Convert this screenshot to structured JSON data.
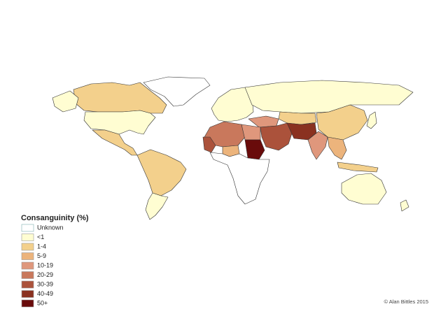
{
  "legend": {
    "title": "Consanguinity (%)",
    "items": [
      {
        "label": "Unknown",
        "color": "#ffffff"
      },
      {
        "label": "<1",
        "color": "#fffdd2"
      },
      {
        "label": "1-4",
        "color": "#f3d08c"
      },
      {
        "label": "5-9",
        "color": "#ecb47c"
      },
      {
        "label": "10-19",
        "color": "#df977c"
      },
      {
        "label": "20-29",
        "color": "#c9785c"
      },
      {
        "label": "30-39",
        "color": "#ab523b"
      },
      {
        "label": "40-49",
        "color": "#8a3120"
      },
      {
        "label": "50+",
        "color": "#690b0b"
      }
    ]
  },
  "credit": "© Alan Bittles 2015"
}
